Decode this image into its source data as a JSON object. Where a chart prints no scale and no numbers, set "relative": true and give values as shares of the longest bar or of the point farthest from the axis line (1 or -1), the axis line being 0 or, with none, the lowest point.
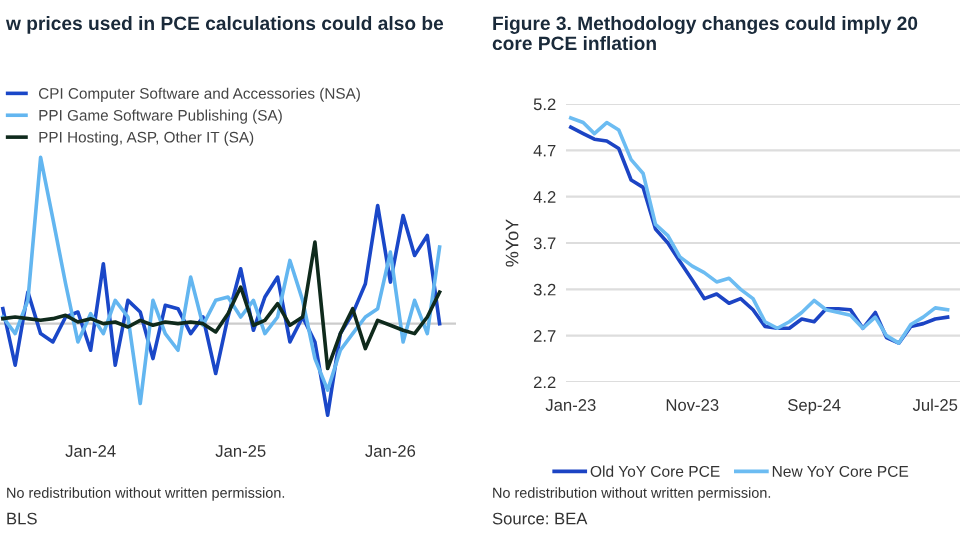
{
  "chart_data": [
    {
      "type": "line",
      "title": "w prices used in PCE calculations could also be",
      "relative": true,
      "legend": "top left",
      "grid": false,
      "x": [
        "2023-06",
        "2023-07",
        "2023-08",
        "2023-09",
        "2023-10",
        "2023-11",
        "2023-12",
        "2024-01",
        "2024-02",
        "2024-03",
        "2024-04",
        "2024-05",
        "2024-06",
        "2024-07",
        "2024-08",
        "2024-09",
        "2024-10",
        "2024-11",
        "2024-12",
        "2025-01",
        "2025-02",
        "2025-03",
        "2025-04",
        "2025-05",
        "2025-06",
        "2025-07",
        "2025-08",
        "2025-09",
        "2025-10",
        "2025-11",
        "2025-12",
        "2026-01",
        "2026-02",
        "2026-03",
        "2026-04",
        "2026-05"
      ],
      "xlim": [
        "2023-05-25",
        "2026-06-10"
      ],
      "xticks": [
        {
          "value": "2024-01",
          "label": "Jan-24"
        },
        {
          "value": "2025-01",
          "label": "Jan-25"
        },
        {
          "value": "2026-01",
          "label": "Jan-26"
        }
      ],
      "series": [
        {
          "name": "CPI Computer Software and Accessories (NSA)",
          "color": "#1a47c8",
          "values": [
            0.09,
            -0.25,
            0.19,
            -0.06,
            -0.11,
            0.04,
            0.07,
            -0.16,
            0.36,
            -0.25,
            0.14,
            0.07,
            -0.21,
            0.11,
            0.09,
            -0.06,
            0.04,
            -0.3,
            0.04,
            0.33,
            -0.04,
            0.16,
            0.28,
            -0.11,
            0.04,
            -0.11,
            -0.55,
            -0.06,
            0.06,
            0.24,
            0.71,
            0.25,
            0.65,
            0.41,
            0.53,
            0
          ]
        },
        {
          "name": "PPI Game Software Publishing (SA)",
          "color": "#63b6f0",
          "values": [
            0.04,
            -0.06,
            0.14,
            1,
            0.63,
            0.24,
            -0.11,
            0.06,
            -0.06,
            0.14,
            0.04,
            -0.48,
            0.14,
            -0.06,
            -0.16,
            0.28,
            -0.01,
            0.14,
            0.16,
            0.04,
            0.14,
            -0.06,
            0.04,
            0.38,
            0.14,
            -0.21,
            -0.4,
            -0.16,
            -0.06,
            0.04,
            0.09,
            0.43,
            -0.11,
            0.14,
            -0.06,
            0.46
          ]
        },
        {
          "name": "PPI Hosting, ASP, Other IT (SA)",
          "color": "#0f2a1c",
          "values": [
            0.03,
            0.04,
            0.03,
            0.02,
            0.03,
            0.05,
            0.01,
            0.03,
            0,
            0.01,
            -0.02,
            0.02,
            -0.01,
            0.01,
            0,
            0.01,
            0,
            -0.05,
            0.06,
            0.22,
            -0.01,
            0.02,
            0.12,
            -0.01,
            0.04,
            0.49,
            -0.27,
            -0.06,
            0.09,
            -0.15,
            0.02,
            -0.01,
            -0.04,
            -0.06,
            0.04,
            0.19
          ]
        }
      ],
      "annotations": [
        "No redistribution without written permission.",
        "BLS"
      ]
    },
    {
      "type": "line",
      "title": "Figure 3. Methodology changes could imply 20\ncore PCE inflation",
      "ylabel": "%YoY",
      "legend": "bottom",
      "grid": "y",
      "x": [
        "2023-01",
        "2023-02",
        "2023-03",
        "2023-04",
        "2023-05",
        "2023-06",
        "2023-07",
        "2023-08",
        "2023-09",
        "2023-10",
        "2023-11",
        "2023-12",
        "2024-01",
        "2024-02",
        "2024-03",
        "2024-04",
        "2024-05",
        "2024-06",
        "2024-07",
        "2024-08",
        "2024-09",
        "2024-10",
        "2024-11",
        "2024-12",
        "2025-01",
        "2025-02",
        "2025-03",
        "2025-04",
        "2025-05",
        "2025-06",
        "2025-07",
        "2025-08"
      ],
      "xlim": [
        "2022-12-20",
        "2025-09"
      ],
      "xticks": [
        {
          "value": "2023-01",
          "label": "Jan-23"
        },
        {
          "value": "2023-11",
          "label": "Nov-23"
        },
        {
          "value": "2024-09",
          "label": "Sep-24"
        },
        {
          "value": "2025-07",
          "label": "Jul-25"
        }
      ],
      "ylim": [
        2.2,
        5.2
      ],
      "yticks": [
        2.2,
        2.7,
        3.2,
        3.7,
        4.2,
        4.7,
        5.2
      ],
      "series": [
        {
          "name": "Old YoY Core PCE",
          "color": "#1c44c4",
          "values": [
            4.95,
            4.88,
            4.82,
            4.8,
            4.72,
            4.38,
            4.3,
            3.85,
            3.7,
            3.5,
            3.3,
            3.1,
            3.15,
            3.05,
            3.1,
            2.98,
            2.8,
            2.78,
            2.78,
            2.88,
            2.85,
            2.99,
            2.99,
            2.98,
            2.78,
            2.95,
            2.68,
            2.62,
            2.8,
            2.83,
            2.88,
            2.9
          ]
        },
        {
          "name": "New YoY Core PCE",
          "color": "#6cbcf2",
          "values": [
            5.05,
            5.0,
            4.88,
            5.0,
            4.92,
            4.6,
            4.45,
            3.9,
            3.78,
            3.55,
            3.45,
            3.38,
            3.28,
            3.32,
            3.2,
            3.1,
            2.85,
            2.78,
            2.85,
            2.95,
            3.08,
            2.98,
            2.95,
            2.92,
            2.78,
            2.9,
            2.7,
            2.62,
            2.82,
            2.9,
            3.0,
            2.98
          ]
        }
      ],
      "annotations": [
        "No redistribution without written permission.",
        "Source: BEA"
      ]
    }
  ]
}
